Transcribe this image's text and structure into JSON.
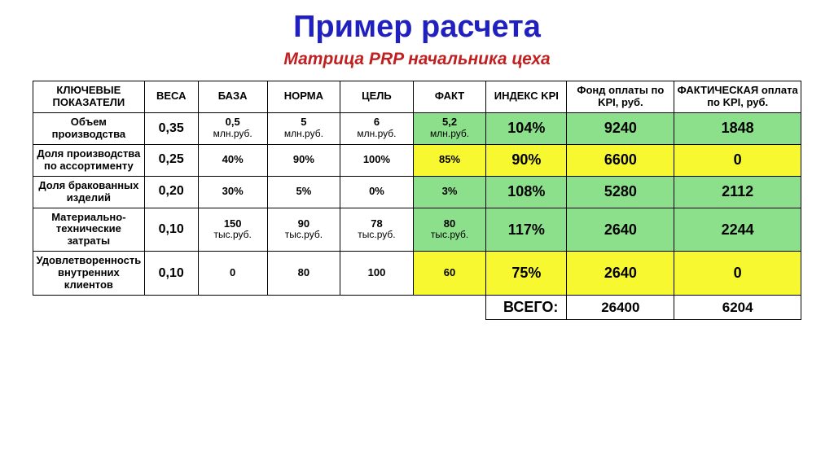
{
  "title": {
    "text": "Пример расчета",
    "color": "#2020c0",
    "fontsize": 38
  },
  "subtitle": {
    "text": "Матрица PRP начальника цеха",
    "color": "#c02020",
    "fontsize": 21
  },
  "colors": {
    "green": "#8ce08c",
    "yellow": "#f8f830",
    "header_bg": "#ffffff",
    "border": "#000000"
  },
  "table": {
    "headers": [
      "КЛЮЧЕВЫЕ ПОКАЗАТЕЛИ",
      "ВЕСА",
      "БАЗА",
      "НОРМА",
      "ЦЕЛЬ",
      "ФАКТ",
      "ИНДЕКС KPI",
      "Фонд оплаты по KPI, руб.",
      "ФАКТИЧЕСКАЯ оплата по KPI, руб."
    ],
    "rows": [
      {
        "name": "Объем производства",
        "weight": "0,35",
        "base": "0,5",
        "base_unit": "млн.руб.",
        "norm": "5",
        "norm_unit": "млн.руб.",
        "goal": "6",
        "goal_unit": "млн.руб.",
        "fact": "5,2",
        "fact_unit": "млн.руб.",
        "fact_bg": "green",
        "index": "104%",
        "index_bg": "green",
        "fund": "9240",
        "fund_bg": "green",
        "actual": "1848",
        "actual_bg": "green"
      },
      {
        "name": "Доля производства по ассортименту",
        "weight": "0,25",
        "base": "40%",
        "norm": "90%",
        "goal": "100%",
        "fact": "85%",
        "fact_bg": "yellow",
        "index": "90%",
        "index_bg": "yellow",
        "fund": "6600",
        "fund_bg": "yellow",
        "actual": "0",
        "actual_bg": "yellow"
      },
      {
        "name": "Доля бракованных изделий",
        "weight": "0,20",
        "base": "30%",
        "norm": "5%",
        "goal": "0%",
        "fact": "3%",
        "fact_bg": "green",
        "index": "108%",
        "index_bg": "green",
        "fund": "5280",
        "fund_bg": "green",
        "actual": "2112",
        "actual_bg": "green"
      },
      {
        "name": "Материально-технические затраты",
        "weight": "0,10",
        "base": "150",
        "base_unit": "тыс.руб.",
        "norm": "90",
        "norm_unit": "тыс.руб.",
        "goal": "78",
        "goal_unit": "тыс.руб.",
        "fact": "80",
        "fact_unit": "тыс.руб.",
        "fact_bg": "green",
        "index": "117%",
        "index_bg": "green",
        "fund": "2640",
        "fund_bg": "green",
        "actual": "2244",
        "actual_bg": "green"
      },
      {
        "name": "Удовлетворенность внутренних клиентов",
        "weight": "0,10",
        "base": "0",
        "norm": "80",
        "goal": "100",
        "fact": "60",
        "fact_bg": "yellow",
        "index": "75%",
        "index_bg": "yellow",
        "fund": "2640",
        "fund_bg": "yellow",
        "actual": "0",
        "actual_bg": "yellow"
      }
    ],
    "total": {
      "label": "ВСЕГО:",
      "fund": "26400",
      "actual": "6204"
    }
  }
}
